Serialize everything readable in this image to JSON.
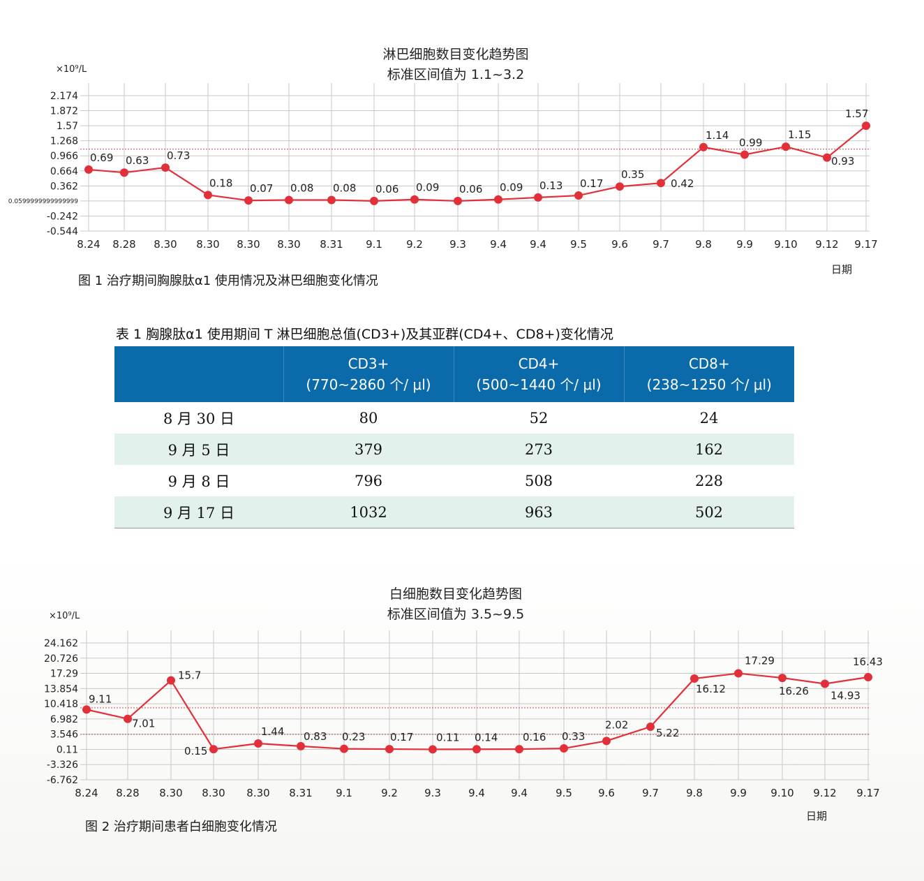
{
  "chart_data": [
    {
      "type": "line",
      "title": "淋巴细胞数目变化趋势图",
      "subtitle": "标准区间值为 1.1~3.2",
      "unit_label": "×10⁹/L",
      "xlabel": "日期",
      "categories": [
        "8.24",
        "8.28",
        "8.30",
        "8.30",
        "8.30",
        "8.30",
        "8.31",
        "9.1",
        "9.2",
        "9.3",
        "9.4",
        "9.4",
        "9.5",
        "9.6",
        "9.7",
        "9.8",
        "9.9",
        "9.10",
        "9.12",
        "9.17"
      ],
      "values": [
        0.69,
        0.63,
        0.73,
        0.18,
        0.07,
        0.08,
        0.08,
        0.06,
        0.09,
        0.06,
        0.09,
        0.13,
        0.17,
        0.35,
        0.42,
        1.14,
        0.99,
        1.15,
        0.93,
        1.57
      ],
      "value_labels": [
        "0.69",
        "0.63",
        "0.73",
        "0.18",
        "0.07",
        "0.08",
        "0.08",
        "0.06",
        "0.09",
        "0.06",
        "0.09",
        "0.13",
        "0.17",
        "0.35",
        "0.42",
        "1.14",
        "0.99",
        "1.15",
        "0.93",
        "1.57"
      ],
      "ytick_labels": [
        "2.174",
        "1.872",
        "1.57",
        "1.268",
        "0.966",
        "0.664",
        "0.362",
        "0.0599999999999999",
        "-0.242",
        "-0.544"
      ],
      "ylim": [
        -0.544,
        2.174
      ],
      "reference_lines": [
        1.1
      ],
      "color": "#e1303a",
      "caption": "图 1  治疗期间胸腺肽α1 使用情况及淋巴细胞变化情况"
    },
    {
      "type": "line",
      "title": "白细胞数目变化趋势图",
      "subtitle": "标准区间值为 3.5~9.5",
      "unit_label": "×10⁹/L",
      "xlabel": "日期",
      "categories": [
        "8.24",
        "8.28",
        "8.30",
        "8.30",
        "8.30",
        "8.31",
        "9.1",
        "9.2",
        "9.3",
        "9.4",
        "9.4",
        "9.5",
        "9.6",
        "9.7",
        "9.8",
        "9.9",
        "9.10",
        "9.12",
        "9.17"
      ],
      "values": [
        9.11,
        7.01,
        15.7,
        0.15,
        1.44,
        0.83,
        0.23,
        0.17,
        0.11,
        0.14,
        0.16,
        0.33,
        2.02,
        5.22,
        16.12,
        17.29,
        16.26,
        14.93,
        16.43
      ],
      "value_labels": [
        "9.11",
        "7.01",
        "15.7",
        "0.15",
        "1.44",
        "0.83",
        "0.23",
        "0.17",
        "0.11",
        "0.14",
        "0.16",
        "0.33",
        "2.02",
        "5.22",
        "16.12",
        "17.29",
        "16.26",
        "14.93",
        "16.43"
      ],
      "ytick_labels": [
        "24.162",
        "20.726",
        "17.29",
        "13.854",
        "10.418",
        "6.982",
        "3.546",
        "0.11",
        "-3.326",
        "-6.762"
      ],
      "ylim": [
        -6.762,
        24.162
      ],
      "reference_lines": [
        3.5,
        9.5
      ],
      "color": "#e1303a",
      "caption": "图 2  治疗期间患者白细胞变化情况"
    }
  ],
  "table": {
    "title": "表 1  胸腺肽α1 使用期间 T 淋巴细胞总值(CD3+)及其亚群(CD4+、CD8+)变化情况",
    "headers": [
      {
        "name": "",
        "range": ""
      },
      {
        "name": "CD3+",
        "range": "(770~2860 个/ μl)"
      },
      {
        "name": "CD4+",
        "range": "(500~1440 个/ μl)"
      },
      {
        "name": "CD8+",
        "range": "(238~1250 个/ μl)"
      }
    ],
    "rows": [
      [
        "8 月 30 日",
        "80",
        "52",
        "24"
      ],
      [
        "9 月 5 日",
        "379",
        "273",
        "162"
      ],
      [
        "9 月 8 日",
        "796",
        "508",
        "228"
      ],
      [
        "9 月 17 日",
        "1032",
        "963",
        "502"
      ]
    ]
  }
}
